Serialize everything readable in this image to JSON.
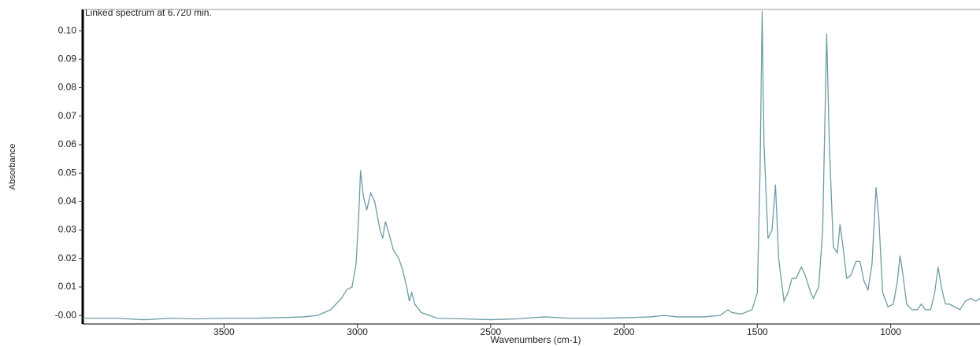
{
  "chart_data": {
    "type": "line",
    "title": "Linked spectrum at 6.720 min.",
    "xlabel": "Wavenumbers (cm-1)",
    "ylabel": "Absorbance",
    "color": "#6e9ca2",
    "xlim": [
      4030,
      665
    ],
    "ylim": [
      -0.003,
      0.1075
    ],
    "xticks": [
      3500,
      3000,
      2500,
      2000,
      1500,
      1000
    ],
    "yticks": [
      {
        "value": 0,
        "label": "-0.00"
      },
      0.01,
      0.02,
      0.03,
      0.04,
      0.05,
      0.06,
      0.07,
      0.08,
      0.09,
      {
        "value": 0.1,
        "label": "0.10"
      }
    ],
    "x": [
      4030,
      3900,
      3800,
      3700,
      3600,
      3500,
      3400,
      3300,
      3200,
      3150,
      3100,
      3060,
      3040,
      3020,
      3005,
      2995,
      2988,
      2978,
      2965,
      2950,
      2935,
      2915,
      2905,
      2895,
      2885,
      2865,
      2845,
      2830,
      2815,
      2805,
      2796,
      2785,
      2760,
      2700,
      2600,
      2500,
      2400,
      2300,
      2200,
      2100,
      2000,
      1900,
      1850,
      1800,
      1700,
      1640,
      1610,
      1595,
      1560,
      1520,
      1500,
      1490,
      1482,
      1475,
      1460,
      1445,
      1432,
      1420,
      1400,
      1385,
      1370,
      1355,
      1335,
      1320,
      1300,
      1290,
      1270,
      1255,
      1240,
      1230,
      1215,
      1200,
      1190,
      1180,
      1165,
      1150,
      1130,
      1115,
      1100,
      1085,
      1070,
      1055,
      1045,
      1030,
      1010,
      990,
      975,
      965,
      955,
      940,
      920,
      900,
      885,
      870,
      850,
      835,
      822,
      810,
      795,
      780,
      760,
      740,
      720,
      700,
      680,
      665
    ],
    "values": [
      -0.001,
      -0.001,
      -0.0015,
      -0.001,
      -0.0012,
      -0.001,
      -0.001,
      -0.0008,
      -0.0005,
      0.0,
      0.002,
      0.006,
      0.009,
      0.01,
      0.018,
      0.035,
      0.051,
      0.042,
      0.037,
      0.043,
      0.04,
      0.03,
      0.027,
      0.033,
      0.03,
      0.023,
      0.02,
      0.016,
      0.01,
      0.005,
      0.008,
      0.004,
      0.001,
      -0.001,
      -0.0012,
      -0.0015,
      -0.0012,
      -0.0005,
      -0.001,
      -0.001,
      -0.0008,
      -0.0005,
      0.0,
      -0.0005,
      -0.0005,
      0.0,
      0.002,
      0.001,
      0.0005,
      0.002,
      0.008,
      0.05,
      0.107,
      0.06,
      0.027,
      0.03,
      0.046,
      0.02,
      0.005,
      0.008,
      0.013,
      0.013,
      0.017,
      0.014,
      0.008,
      0.006,
      0.01,
      0.03,
      0.099,
      0.06,
      0.024,
      0.022,
      0.032,
      0.025,
      0.013,
      0.014,
      0.019,
      0.019,
      0.012,
      0.009,
      0.018,
      0.045,
      0.035,
      0.008,
      0.003,
      0.004,
      0.012,
      0.021,
      0.015,
      0.004,
      0.002,
      0.002,
      0.004,
      0.002,
      0.002,
      0.008,
      0.017,
      0.01,
      0.004,
      0.004,
      0.003,
      0.002,
      0.005,
      0.006,
      0.005,
      0.006
    ]
  }
}
